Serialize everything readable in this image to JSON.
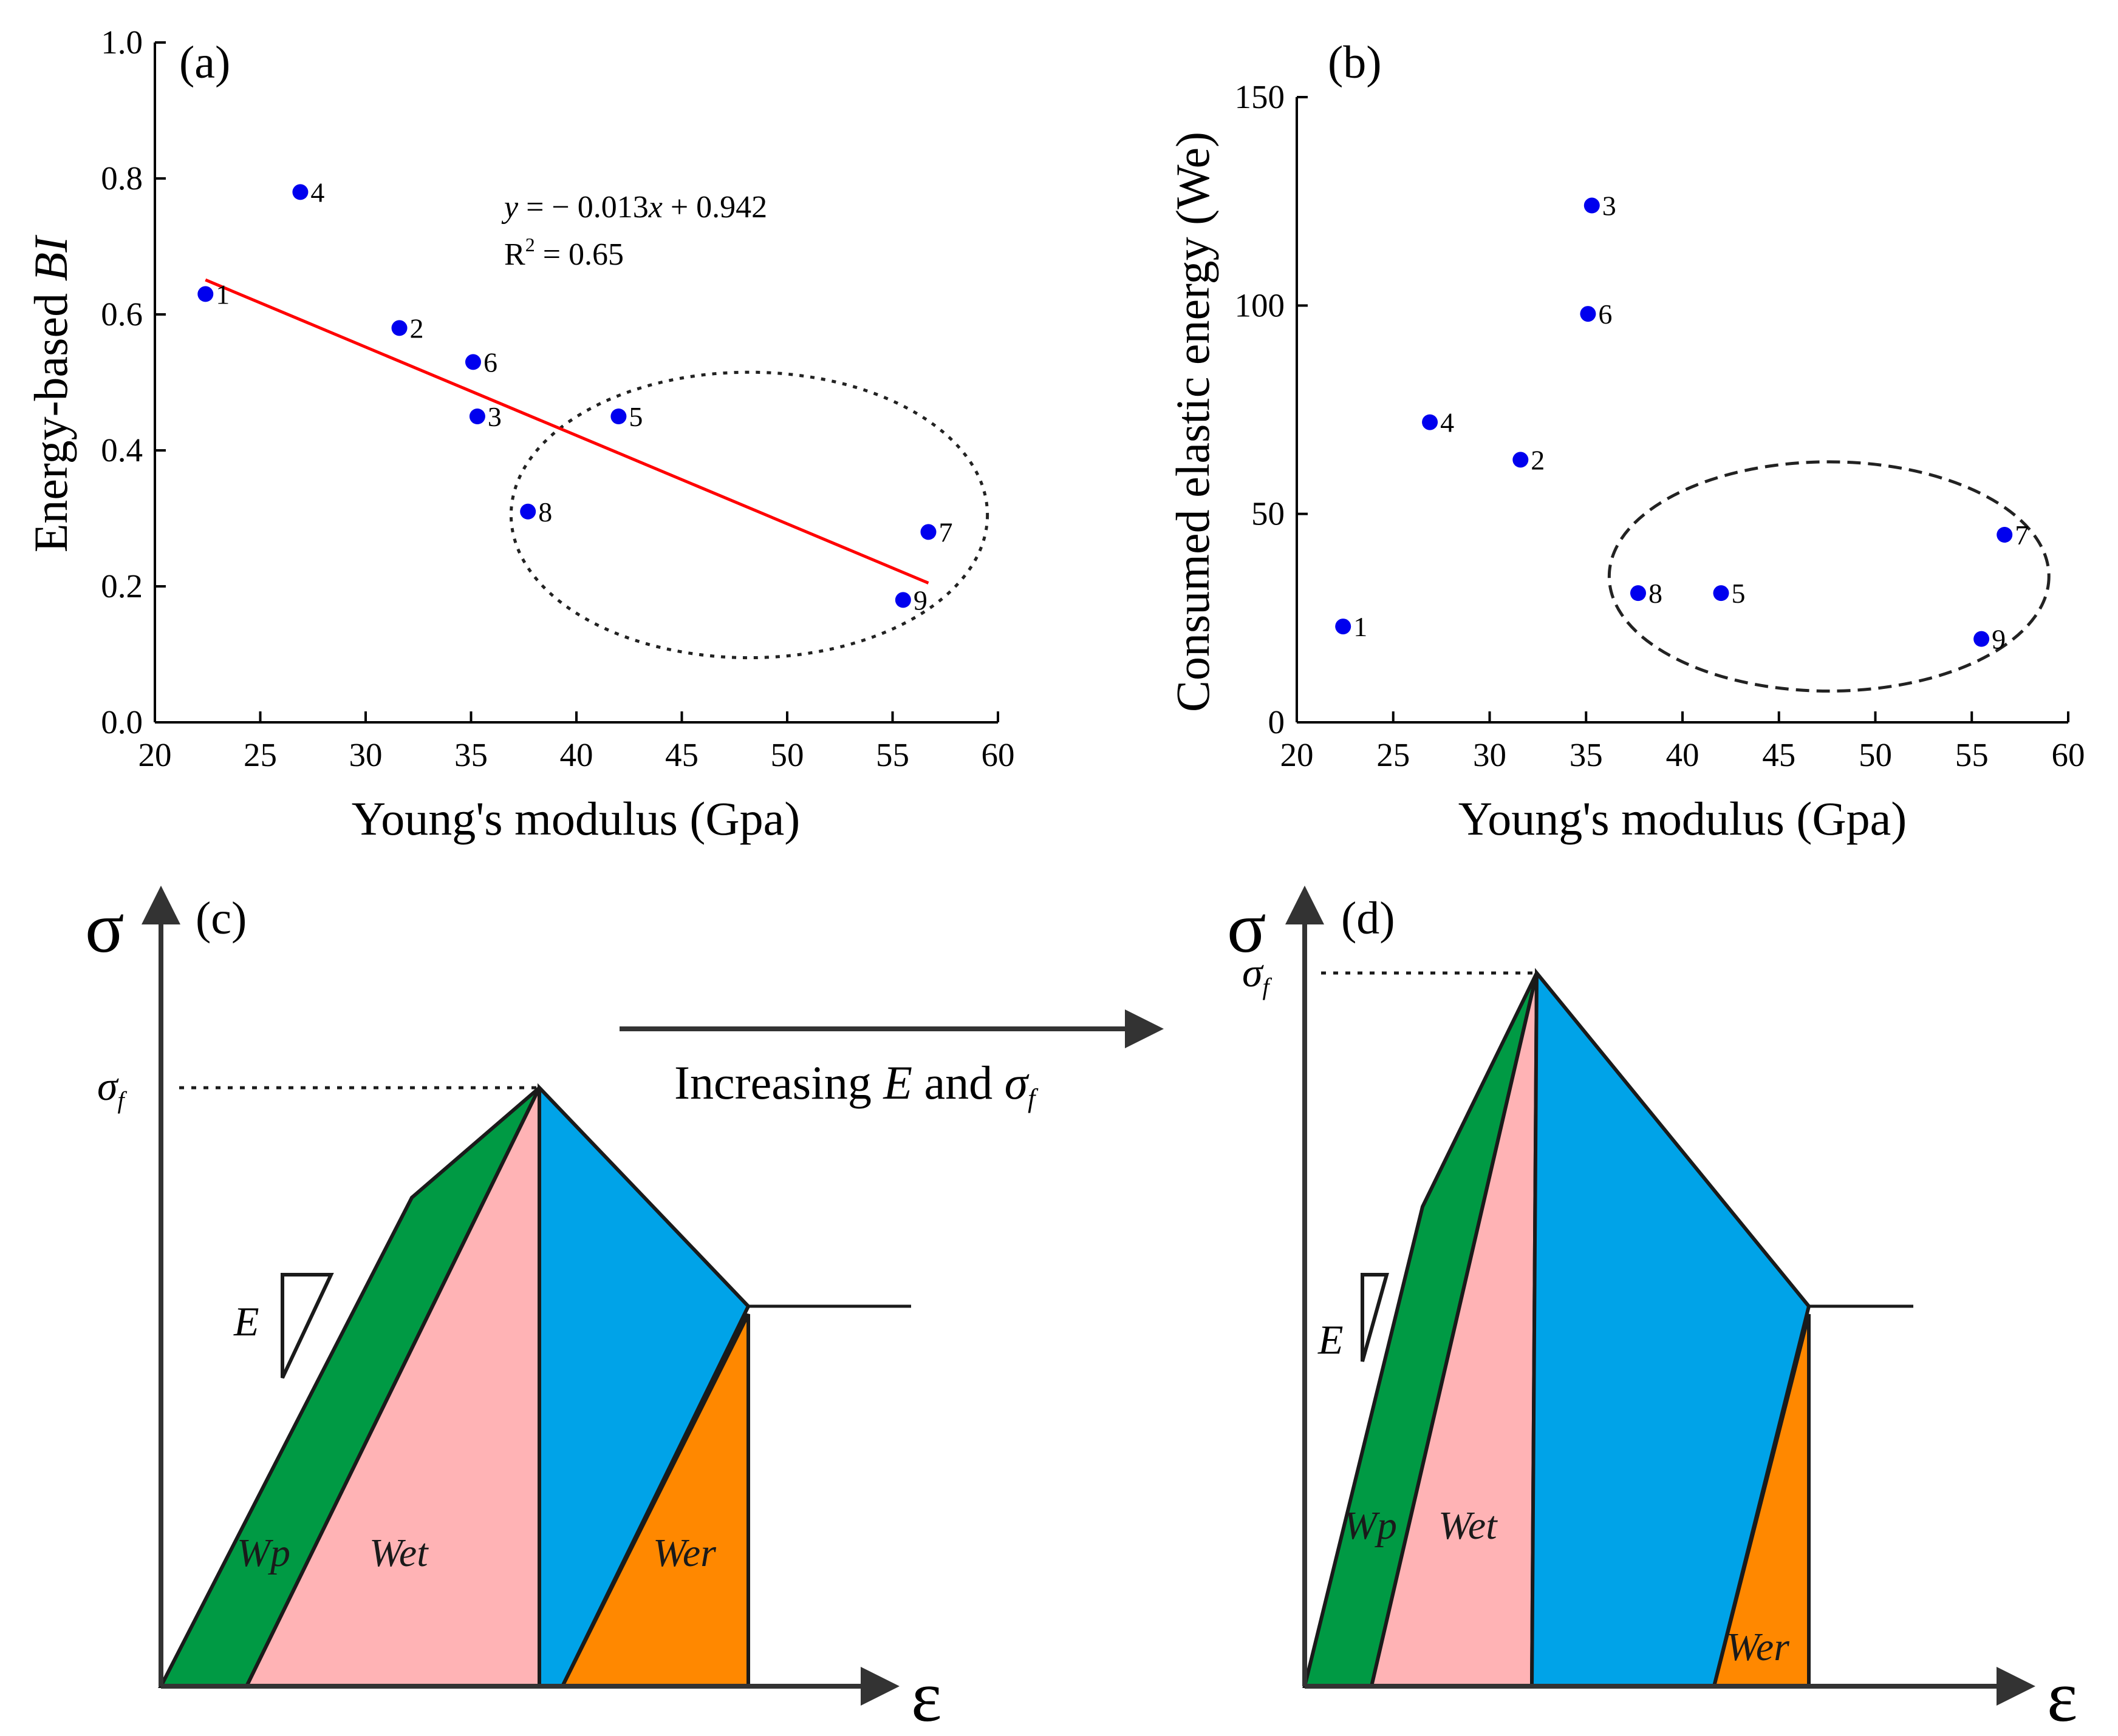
{
  "colors": {
    "point": "#0000ee",
    "fit_line": "#ff0000",
    "wp": "#009a44",
    "wet": "#ffb3b5",
    "blue_region": "#00a3e8",
    "wer": "#ff8800",
    "axis": "#000000",
    "arrow": "#333333"
  },
  "chart_data": [
    {
      "id": "a",
      "type": "scatter",
      "panel_label": "(a)",
      "xlabel": "Young's modulus (Gpa)",
      "ylabel_prefix": "Energy-based ",
      "ylabel_italic": "BI",
      "xlim": [
        20,
        60
      ],
      "ylim": [
        0.0,
        1.0
      ],
      "xticks": [
        20,
        25,
        30,
        35,
        40,
        45,
        50,
        55,
        60
      ],
      "yticks": [
        0.0,
        0.2,
        0.4,
        0.6,
        0.8,
        1.0
      ],
      "ytick_labels": [
        "0.0",
        "0.2",
        "0.4",
        "0.6",
        "0.8",
        "1.0"
      ],
      "points": [
        {
          "label": "1",
          "x": 22.4,
          "y": 0.63
        },
        {
          "label": "2",
          "x": 31.6,
          "y": 0.58
        },
        {
          "label": "3",
          "x": 35.3,
          "y": 0.45
        },
        {
          "label": "4",
          "x": 26.9,
          "y": 0.78
        },
        {
          "label": "5",
          "x": 42.0,
          "y": 0.45
        },
        {
          "label": "6",
          "x": 35.1,
          "y": 0.53
        },
        {
          "label": "7",
          "x": 56.7,
          "y": 0.28
        },
        {
          "label": "8",
          "x": 37.7,
          "y": 0.31
        },
        {
          "label": "9",
          "x": 55.5,
          "y": 0.18
        }
      ],
      "fit": {
        "slope": -0.013,
        "intercept": 0.942,
        "x_range": [
          22.4,
          56.7
        ],
        "equation_prefix": "y",
        "equation_rest": " = − 0.013",
        "equation_var": "x",
        "equation_tail": " + 0.942",
        "r2_base": "R",
        "r2_sup": "2",
        "r2_tail": " = 0.65"
      },
      "ellipse": {
        "cx": 48.2,
        "cy": 0.305,
        "rx": 11.3,
        "ry": 0.21
      }
    },
    {
      "id": "b",
      "type": "scatter",
      "panel_label": "(b)",
      "xlabel": "Young's modulus (Gpa)",
      "ylabel": "Consumed elastic energy (We)",
      "xlim": [
        20,
        60
      ],
      "ylim": [
        0,
        150
      ],
      "xticks": [
        20,
        25,
        30,
        35,
        40,
        45,
        50,
        55,
        60
      ],
      "yticks": [
        0,
        50,
        100,
        150
      ],
      "ytick_labels": [
        "0",
        "50",
        "100",
        "150"
      ],
      "points": [
        {
          "label": "1",
          "x": 22.4,
          "y": 23
        },
        {
          "label": "2",
          "x": 31.6,
          "y": 63
        },
        {
          "label": "3",
          "x": 35.3,
          "y": 124
        },
        {
          "label": "4",
          "x": 26.9,
          "y": 72
        },
        {
          "label": "5",
          "x": 42.0,
          "y": 31
        },
        {
          "label": "6",
          "x": 35.1,
          "y": 98
        },
        {
          "label": "7",
          "x": 56.7,
          "y": 45
        },
        {
          "label": "8",
          "x": 37.7,
          "y": 31
        },
        {
          "label": "9",
          "x": 55.5,
          "y": 20
        }
      ],
      "ellipse": {
        "cx": 47.6,
        "cy": 35,
        "rx": 11.4,
        "ry": 27.5
      }
    }
  ],
  "diagrams": {
    "c": {
      "panel_label": "(c)",
      "stress_symbol": "σ",
      "strain_symbol": "ε",
      "peak_base": "σ",
      "peak_sub": "f",
      "modulus_label": "E",
      "regions": {
        "wp": "Wp",
        "wet": "Wet",
        "wer": "Wer"
      }
    },
    "d": {
      "panel_label": "(d)",
      "stress_symbol": "σ",
      "strain_symbol": "ε",
      "peak_base": "σ",
      "peak_sub": "f",
      "modulus_label": "E",
      "regions": {
        "wp": "Wp",
        "wet": "Wet",
        "wer": "Wer"
      }
    }
  },
  "transition": {
    "prefix": "Increasing ",
    "e_symbol": "E",
    "middle": " and ",
    "sigma": "σ",
    "sigma_sub": "f"
  }
}
